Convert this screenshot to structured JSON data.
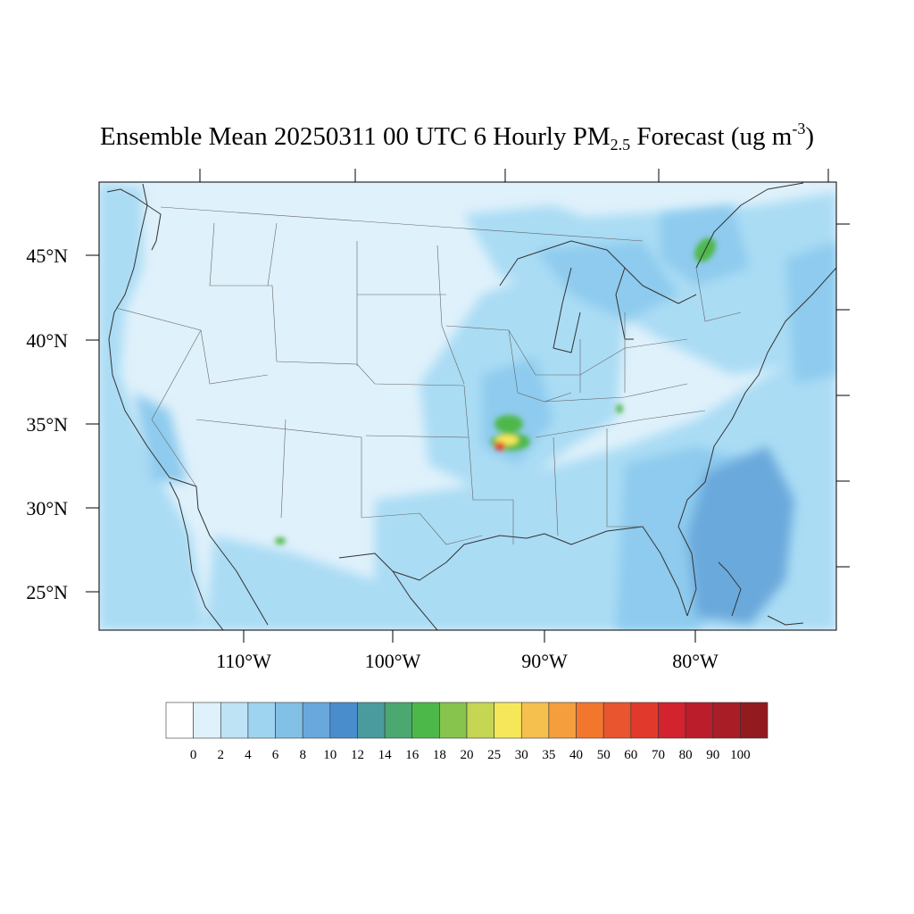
{
  "title": {
    "prefix": "Ensemble Mean 20250311 00 UTC 6 Hourly PM",
    "subscript": "2.5",
    "middle": " Forecast (ug m",
    "superscript": "-3",
    "suffix": ")"
  },
  "lat_labels": [
    "45°N",
    "40°N",
    "35°N",
    "30°N",
    "25°N"
  ],
  "lon_labels": [
    "110°W",
    "100°W",
    "90°W",
    "80°W"
  ],
  "colorbar": {
    "labels": [
      "0",
      "2",
      "4",
      "6",
      "8",
      "10",
      "12",
      "14",
      "16",
      "18",
      "20",
      "25",
      "30",
      "35",
      "40",
      "50",
      "60",
      "70",
      "80",
      "90",
      "100"
    ],
    "colors": [
      "#ffffff",
      "#dff1fb",
      "#bde3f5",
      "#9fd4f1",
      "#82c0e6",
      "#68a8dc",
      "#4a8dcc",
      "#4a9b9e",
      "#4aa870",
      "#4db84a",
      "#86c44e",
      "#c4d652",
      "#f6e75a",
      "#f6c04e",
      "#f59e3e",
      "#f2772d",
      "#e9552f",
      "#e13a2c",
      "#d2232e",
      "#bb1e2a",
      "#a91d26",
      "#931a1f"
    ]
  },
  "map_colors": {
    "background": "#dff1fb",
    "low": "#cbe8f7",
    "moderate": "#aadcf4",
    "high": "#8ecbee",
    "ocean_high": "#6aa9dc",
    "green": "#4db84a",
    "yellow": "#f6e75a",
    "red": "#e13a2c",
    "lines": "#555555"
  }
}
